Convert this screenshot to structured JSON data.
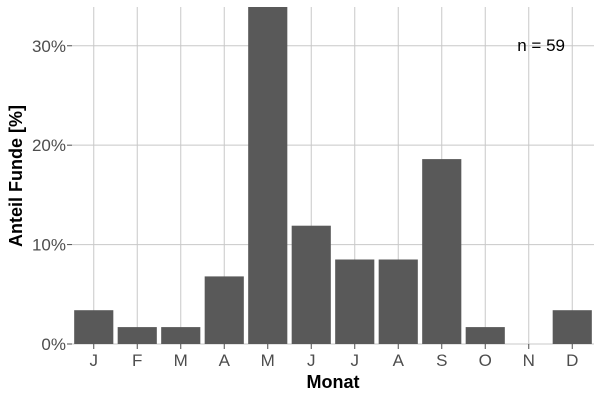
{
  "chart_data": {
    "type": "bar",
    "categories": [
      "J",
      "F",
      "M",
      "A",
      "M",
      "J",
      "J",
      "A",
      "S",
      "O",
      "N",
      "D"
    ],
    "values": [
      3.4,
      1.7,
      1.7,
      6.8,
      33.9,
      11.9,
      8.5,
      8.5,
      18.6,
      1.7,
      0,
      3.4
    ],
    "xlabel": "Monat",
    "ylabel": "Anteil Funde [%]",
    "ylim": [
      0,
      33.9
    ],
    "yticks": [
      0,
      10,
      20,
      30
    ],
    "ytick_labels": [
      "0%",
      "10%",
      "20%",
      "30%"
    ],
    "annotation": "n = 59",
    "annotation_position": "top-right",
    "grid": true,
    "bar_color": "#595959",
    "grid_color": "#c8c8c8",
    "background_color": "#ffffff"
  }
}
